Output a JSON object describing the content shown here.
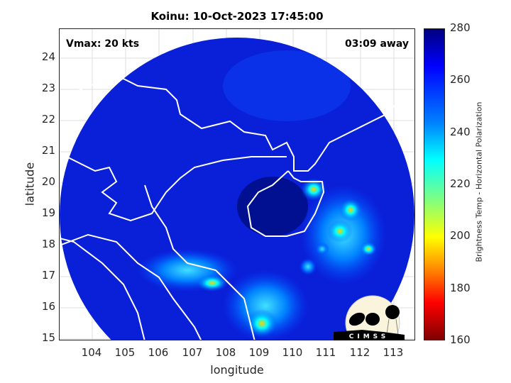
{
  "title": "Koinu: 10-Oct-2023 17:45:00",
  "vmax_label": "Vmax: 20 kts",
  "time_away_label": "03:09 away",
  "xlabel": "longitude",
  "ylabel": "latitude",
  "x_ticks": [
    "104",
    "105",
    "106",
    "107",
    "108",
    "109",
    "110",
    "111",
    "112",
    "113"
  ],
  "y_ticks": [
    "24",
    "23",
    "22",
    "21",
    "20",
    "19",
    "18",
    "17",
    "16",
    "15"
  ],
  "xlim": [
    103.07,
    113.7
  ],
  "ylim": [
    14.93,
    24.93
  ],
  "colorbar": {
    "label": "Brightness Temp - Horizontal Polarization",
    "ticks": [
      "280",
      "260",
      "240",
      "220",
      "200",
      "180",
      "160"
    ],
    "range": [
      160,
      280
    ],
    "colormap": "jet"
  },
  "logo": "CIMSS",
  "colors": {
    "background_cold": "#0a1fd0",
    "land_core": "#00108a",
    "coastline": "#ffffff"
  }
}
